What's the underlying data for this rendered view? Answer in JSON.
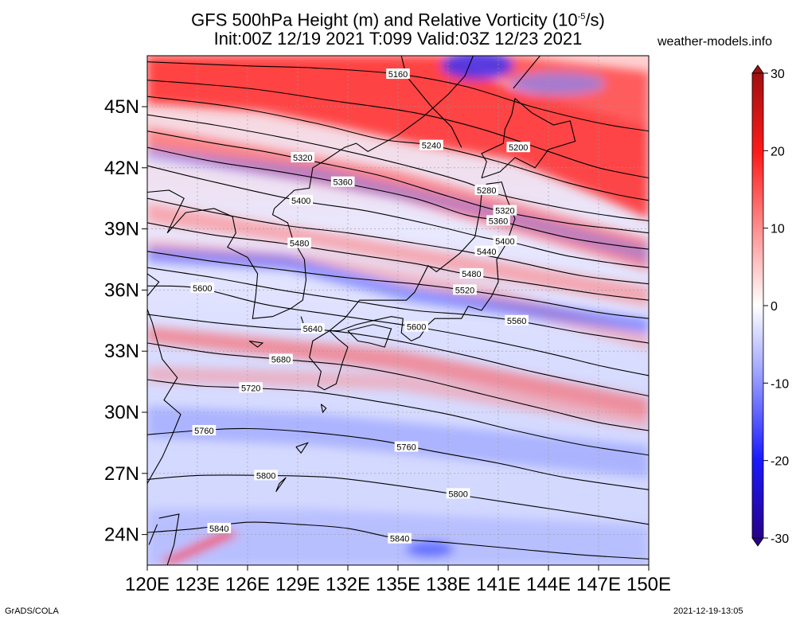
{
  "title": {
    "line1_pre": "GFS 500hPa Height (m) and Relative Vorticity (10",
    "line1_sup": "-5",
    "line1_post": "/s)",
    "line2": "Init:00Z 12/19 2021 T:099 Valid:03Z 12/23 2021"
  },
  "site": "weather-models.info",
  "footer": {
    "left": "GrADS/COLA",
    "right": "2021-12-19-13:05"
  },
  "map_extent": {
    "lon": [
      120,
      150
    ],
    "lat": [
      22.5,
      47.5
    ]
  },
  "lon_ticks": [
    "120E",
    "123E",
    "126E",
    "129E",
    "132E",
    "135E",
    "138E",
    "141E",
    "144E",
    "147E",
    "150E"
  ],
  "lon_values": [
    120,
    123,
    126,
    129,
    132,
    135,
    138,
    141,
    144,
    147,
    150
  ],
  "lat_ticks": [
    "24N",
    "27N",
    "30N",
    "33N",
    "36N",
    "39N",
    "42N",
    "45N"
  ],
  "lat_values": [
    24,
    27,
    30,
    33,
    36,
    39,
    42,
    45
  ],
  "colorbar": {
    "labels": [
      "30",
      "20",
      "10",
      "0",
      "-10",
      "-20",
      "-30"
    ],
    "values": [
      30,
      20,
      10,
      0,
      -10,
      -20,
      -30
    ],
    "colors": {
      "max": "#b01818",
      "high": "#ff2020",
      "low_pos": "#ffd8d8",
      "zero": "#ffffff",
      "low_neg": "#d8dcff",
      "low": "#2020ff",
      "min": "#20008a"
    }
  },
  "contour_labels": [
    {
      "text": "5160",
      "lon": 135.0,
      "lat": 46.6
    },
    {
      "text": "5240",
      "lon": 137.0,
      "lat": 43.1
    },
    {
      "text": "5200",
      "lon": 142.2,
      "lat": 43.0
    },
    {
      "text": "5320",
      "lon": 129.3,
      "lat": 42.5
    },
    {
      "text": "5360",
      "lon": 131.7,
      "lat": 41.3
    },
    {
      "text": "5280",
      "lon": 140.3,
      "lat": 40.9
    },
    {
      "text": "5400",
      "lon": 129.2,
      "lat": 40.4
    },
    {
      "text": "5320",
      "lon": 141.4,
      "lat": 39.9
    },
    {
      "text": "5360",
      "lon": 141.0,
      "lat": 39.4
    },
    {
      "text": "5400",
      "lon": 141.4,
      "lat": 38.4
    },
    {
      "text": "5480",
      "lon": 129.1,
      "lat": 38.3
    },
    {
      "text": "5440",
      "lon": 140.3,
      "lat": 37.9
    },
    {
      "text": "5480",
      "lon": 139.4,
      "lat": 36.8
    },
    {
      "text": "5600",
      "lon": 123.3,
      "lat": 36.1
    },
    {
      "text": "5520",
      "lon": 139.0,
      "lat": 36.0
    },
    {
      "text": "5560",
      "lon": 142.1,
      "lat": 34.5
    },
    {
      "text": "5600",
      "lon": 136.1,
      "lat": 34.2
    },
    {
      "text": "5640",
      "lon": 129.9,
      "lat": 34.1
    },
    {
      "text": "5680",
      "lon": 128.0,
      "lat": 32.6
    },
    {
      "text": "5720",
      "lon": 126.2,
      "lat": 31.2
    },
    {
      "text": "5760",
      "lon": 123.4,
      "lat": 29.1
    },
    {
      "text": "5760",
      "lon": 135.5,
      "lat": 28.3
    },
    {
      "text": "5800",
      "lon": 127.1,
      "lat": 26.9
    },
    {
      "text": "5800",
      "lon": 138.6,
      "lat": 26.0
    },
    {
      "text": "5840",
      "lon": 124.3,
      "lat": 24.3
    },
    {
      "text": "5840",
      "lon": 135.1,
      "lat": 23.8
    }
  ],
  "contours": [
    {
      "value": 5160,
      "pts": [
        [
          120,
          47.2
        ],
        [
          126,
          47.0
        ],
        [
          130,
          46.9
        ],
        [
          135,
          46.6
        ],
        [
          139,
          46.0
        ],
        [
          143,
          45.0
        ],
        [
          147,
          44.2
        ],
        [
          150,
          43.8
        ]
      ]
    },
    {
      "value": 5200,
      "pts": [
        [
          120,
          46.3
        ],
        [
          126,
          45.9
        ],
        [
          131,
          45.3
        ],
        [
          136,
          44.7
        ],
        [
          140,
          43.9
        ],
        [
          144,
          42.8
        ],
        [
          147,
          42.0
        ],
        [
          150,
          41.5
        ]
      ]
    },
    {
      "value": 5240,
      "pts": [
        [
          120,
          45.5
        ],
        [
          125,
          45.0
        ],
        [
          130,
          44.2
        ],
        [
          134,
          43.4
        ],
        [
          137,
          43.1
        ],
        [
          141,
          42.3
        ],
        [
          145,
          41.3
        ],
        [
          148,
          40.7
        ],
        [
          150,
          40.4
        ]
      ]
    },
    {
      "value": 5280,
      "pts": [
        [
          120,
          44.6
        ],
        [
          124,
          44.1
        ],
        [
          128,
          43.5
        ],
        [
          132,
          42.8
        ],
        [
          136,
          42.0
        ],
        [
          139,
          41.3
        ],
        [
          141,
          40.7
        ],
        [
          145,
          40.0
        ],
        [
          148,
          39.6
        ],
        [
          150,
          39.4
        ]
      ]
    },
    {
      "value": 5320,
      "pts": [
        [
          120,
          43.8
        ],
        [
          124,
          43.2
        ],
        [
          127,
          42.8
        ],
        [
          130,
          42.3
        ],
        [
          134,
          41.6
        ],
        [
          138,
          40.6
        ],
        [
          141,
          39.9
        ],
        [
          145,
          39.3
        ],
        [
          148,
          39.0
        ],
        [
          150,
          38.8
        ]
      ]
    },
    {
      "value": 5360,
      "pts": [
        [
          120,
          43.0
        ],
        [
          124,
          42.3
        ],
        [
          128,
          41.8
        ],
        [
          132,
          41.2
        ],
        [
          136,
          40.5
        ],
        [
          139,
          39.7
        ],
        [
          141,
          39.4
        ],
        [
          145,
          38.6
        ],
        [
          148,
          38.2
        ],
        [
          150,
          38.0
        ]
      ]
    },
    {
      "value": 5400,
      "pts": [
        [
          120,
          42.1
        ],
        [
          124,
          41.3
        ],
        [
          129,
          40.4
        ],
        [
          133,
          39.9
        ],
        [
          137,
          39.2
        ],
        [
          140,
          38.6
        ],
        [
          142,
          38.3
        ],
        [
          145,
          37.7
        ],
        [
          148,
          37.3
        ],
        [
          150,
          37.1
        ]
      ]
    },
    {
      "value": 5440,
      "pts": [
        [
          120,
          40.5
        ],
        [
          124,
          39.8
        ],
        [
          128,
          39.2
        ],
        [
          132,
          38.8
        ],
        [
          136,
          38.3
        ],
        [
          139,
          37.9
        ],
        [
          142,
          37.4
        ],
        [
          146,
          36.7
        ],
        [
          150,
          36.3
        ]
      ]
    },
    {
      "value": 5480,
      "pts": [
        [
          120,
          39.3
        ],
        [
          124,
          38.7
        ],
        [
          128,
          38.3
        ],
        [
          132,
          37.8
        ],
        [
          136,
          37.3
        ],
        [
          139,
          36.8
        ],
        [
          143,
          36.3
        ],
        [
          147,
          35.8
        ],
        [
          150,
          35.5
        ]
      ]
    },
    {
      "value": 5520,
      "pts": [
        [
          120,
          37.9
        ],
        [
          124,
          37.4
        ],
        [
          128,
          37.0
        ],
        [
          132,
          36.6
        ],
        [
          136,
          36.3
        ],
        [
          139,
          36.0
        ],
        [
          143,
          35.5
        ],
        [
          147,
          34.9
        ],
        [
          150,
          34.6
        ]
      ]
    },
    {
      "value": 5560,
      "pts": [
        [
          120,
          37.1
        ],
        [
          124,
          36.6
        ],
        [
          128,
          36.0
        ],
        [
          132,
          35.5
        ],
        [
          136,
          35.0
        ],
        [
          139,
          34.8
        ],
        [
          142,
          34.5
        ],
        [
          146,
          33.9
        ],
        [
          150,
          33.4
        ]
      ]
    },
    {
      "value": 5600,
      "pts": [
        [
          120,
          36.2
        ],
        [
          123,
          36.1
        ],
        [
          127,
          35.3
        ],
        [
          131,
          34.8
        ],
        [
          136,
          34.2
        ],
        [
          140,
          33.6
        ],
        [
          144,
          32.9
        ],
        [
          147,
          32.3
        ],
        [
          150,
          31.8
        ]
      ]
    },
    {
      "value": 5640,
      "pts": [
        [
          120,
          34.8
        ],
        [
          124,
          34.4
        ],
        [
          128,
          34.1
        ],
        [
          131,
          34.0
        ],
        [
          135,
          33.5
        ],
        [
          139,
          32.8
        ],
        [
          143,
          32.0
        ],
        [
          147,
          31.3
        ],
        [
          150,
          30.8
        ]
      ]
    },
    {
      "value": 5680,
      "pts": [
        [
          120,
          33.4
        ],
        [
          124,
          32.9
        ],
        [
          128,
          32.6
        ],
        [
          132,
          32.3
        ],
        [
          136,
          31.7
        ],
        [
          140,
          30.9
        ],
        [
          144,
          30.1
        ],
        [
          147,
          29.5
        ],
        [
          150,
          29.1
        ]
      ]
    },
    {
      "value": 5720,
      "pts": [
        [
          120,
          31.6
        ],
        [
          123,
          31.3
        ],
        [
          126,
          31.2
        ],
        [
          130,
          31.0
        ],
        [
          134,
          30.5
        ],
        [
          138,
          29.9
        ],
        [
          142,
          29.1
        ],
        [
          146,
          28.4
        ],
        [
          150,
          27.9
        ]
      ]
    },
    {
      "value": 5760,
      "pts": [
        [
          120,
          28.9
        ],
        [
          123,
          29.1
        ],
        [
          126,
          29.2
        ],
        [
          130,
          29.0
        ],
        [
          134,
          28.6
        ],
        [
          137,
          28.1
        ],
        [
          141,
          27.5
        ],
        [
          145,
          26.8
        ],
        [
          150,
          26.2
        ]
      ]
    },
    {
      "value": 5800,
      "pts": [
        [
          120,
          26.7
        ],
        [
          123,
          26.9
        ],
        [
          127,
          26.9
        ],
        [
          131,
          26.8
        ],
        [
          135,
          26.4
        ],
        [
          139,
          25.9
        ],
        [
          143,
          25.4
        ],
        [
          147,
          24.9
        ],
        [
          150,
          24.5
        ]
      ]
    },
    {
      "value": 5840,
      "pts": [
        [
          120,
          24.1
        ],
        [
          123,
          24.3
        ],
        [
          126,
          24.6
        ],
        [
          129,
          24.5
        ],
        [
          132,
          24.3
        ],
        [
          135,
          23.8
        ],
        [
          138,
          23.6
        ],
        [
          142,
          23.3
        ],
        [
          146,
          23.0
        ],
        [
          150,
          22.8
        ]
      ]
    }
  ]
}
